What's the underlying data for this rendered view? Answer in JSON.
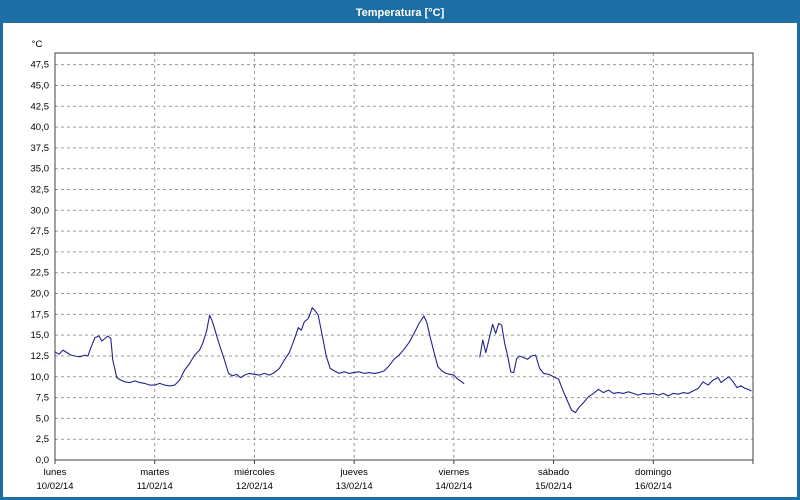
{
  "window": {
    "title": "Temperatura [°C]"
  },
  "chart_data": {
    "type": "line",
    "title": "Temperatura [°C]",
    "ylabel": "°C",
    "xlabel": "",
    "ylim": [
      0,
      48.9
    ],
    "xlim": [
      0,
      7
    ],
    "grid": "dashed",
    "legend": "none",
    "line_color": "#23238E",
    "grid_color": "#9a9a9a",
    "axis_color": "#404040",
    "yticks": [
      0,
      2.5,
      5,
      7.5,
      10,
      12.5,
      15,
      17.5,
      20,
      22.5,
      25,
      27.5,
      30,
      32.5,
      35,
      37.5,
      40,
      42.5,
      45,
      47.5
    ],
    "ytick_labels": [
      "0,0",
      "2,5",
      "5,0",
      "7,5",
      "10,0",
      "12,5",
      "15,0",
      "17,5",
      "20,0",
      "22,5",
      "25,0",
      "27,5",
      "30,0",
      "32,5",
      "35,0",
      "37,5",
      "40,0",
      "42,5",
      "45,0",
      "47,5"
    ],
    "x_categories": [
      {
        "label": "lunes",
        "date": "10/02/14"
      },
      {
        "label": "martes",
        "date": "11/02/14"
      },
      {
        "label": "miércoles",
        "date": "12/02/14"
      },
      {
        "label": "jueves",
        "date": "13/02/14"
      },
      {
        "label": "viernes",
        "date": "14/02/14"
      },
      {
        "label": "sábado",
        "date": "15/02/14"
      },
      {
        "label": "domingo",
        "date": "16/02/14"
      }
    ],
    "series_name": "Temperatura",
    "points": [
      [
        0.0,
        13.0
      ],
      [
        0.04,
        12.7
      ],
      [
        0.08,
        13.2
      ],
      [
        0.12,
        12.9
      ],
      [
        0.16,
        12.6
      ],
      [
        0.2,
        12.5
      ],
      [
        0.25,
        12.4
      ],
      [
        0.3,
        12.6
      ],
      [
        0.33,
        12.5
      ],
      [
        0.36,
        13.5
      ],
      [
        0.4,
        14.7
      ],
      [
        0.44,
        14.9
      ],
      [
        0.47,
        14.3
      ],
      [
        0.5,
        14.6
      ],
      [
        0.53,
        14.9
      ],
      [
        0.56,
        14.6
      ],
      [
        0.58,
        12.0
      ],
      [
        0.62,
        9.9
      ],
      [
        0.66,
        9.6
      ],
      [
        0.7,
        9.4
      ],
      [
        0.75,
        9.3
      ],
      [
        0.8,
        9.5
      ],
      [
        0.85,
        9.3
      ],
      [
        0.9,
        9.2
      ],
      [
        0.95,
        9.0
      ],
      [
        1.0,
        9.0
      ],
      [
        1.05,
        9.2
      ],
      [
        1.1,
        9.0
      ],
      [
        1.15,
        8.9
      ],
      [
        1.2,
        9.0
      ],
      [
        1.25,
        9.6
      ],
      [
        1.3,
        10.8
      ],
      [
        1.35,
        11.6
      ],
      [
        1.4,
        12.6
      ],
      [
        1.45,
        13.2
      ],
      [
        1.48,
        14.0
      ],
      [
        1.52,
        15.5
      ],
      [
        1.55,
        17.4
      ],
      [
        1.58,
        16.6
      ],
      [
        1.62,
        15.0
      ],
      [
        1.65,
        13.8
      ],
      [
        1.7,
        12.0
      ],
      [
        1.74,
        10.4
      ],
      [
        1.78,
        10.1
      ],
      [
        1.82,
        10.3
      ],
      [
        1.86,
        9.9
      ],
      [
        1.9,
        10.2
      ],
      [
        1.95,
        10.4
      ],
      [
        2.0,
        10.3
      ],
      [
        2.05,
        10.2
      ],
      [
        2.1,
        10.4
      ],
      [
        2.15,
        10.2
      ],
      [
        2.2,
        10.5
      ],
      [
        2.25,
        11.0
      ],
      [
        2.3,
        12.0
      ],
      [
        2.35,
        12.9
      ],
      [
        2.4,
        14.5
      ],
      [
        2.44,
        15.9
      ],
      [
        2.47,
        15.6
      ],
      [
        2.5,
        16.6
      ],
      [
        2.54,
        17.0
      ],
      [
        2.58,
        18.3
      ],
      [
        2.61,
        17.9
      ],
      [
        2.64,
        17.4
      ],
      [
        2.68,
        15.0
      ],
      [
        2.72,
        12.5
      ],
      [
        2.76,
        11.0
      ],
      [
        2.8,
        10.7
      ],
      [
        2.85,
        10.4
      ],
      [
        2.9,
        10.6
      ],
      [
        2.95,
        10.4
      ],
      [
        3.0,
        10.5
      ],
      [
        3.05,
        10.6
      ],
      [
        3.1,
        10.4
      ],
      [
        3.15,
        10.5
      ],
      [
        3.2,
        10.4
      ],
      [
        3.25,
        10.5
      ],
      [
        3.3,
        10.7
      ],
      [
        3.35,
        11.3
      ],
      [
        3.4,
        12.1
      ],
      [
        3.45,
        12.6
      ],
      [
        3.5,
        13.3
      ],
      [
        3.55,
        14.1
      ],
      [
        3.6,
        15.2
      ],
      [
        3.65,
        16.4
      ],
      [
        3.7,
        17.3
      ],
      [
        3.73,
        16.5
      ],
      [
        3.76,
        14.9
      ],
      [
        3.8,
        13.0
      ],
      [
        3.84,
        11.2
      ],
      [
        3.88,
        10.7
      ],
      [
        3.92,
        10.4
      ],
      [
        3.96,
        10.3
      ],
      [
        4.0,
        10.2
      ],
      [
        4.04,
        9.7
      ],
      [
        4.08,
        9.4
      ],
      [
        4.1,
        9.2
      ],
      null,
      [
        4.26,
        12.4
      ],
      [
        4.29,
        14.4
      ],
      [
        4.32,
        12.9
      ],
      [
        4.36,
        14.9
      ],
      [
        4.39,
        16.3
      ],
      [
        4.42,
        15.2
      ],
      [
        4.45,
        16.4
      ],
      [
        4.48,
        16.2
      ],
      [
        4.51,
        14.0
      ],
      [
        4.54,
        12.5
      ],
      [
        4.57,
        10.6
      ],
      [
        4.6,
        10.5
      ],
      [
        4.63,
        12.2
      ],
      [
        4.66,
        12.5
      ],
      [
        4.7,
        12.3
      ],
      [
        4.74,
        12.1
      ],
      [
        4.78,
        12.5
      ],
      [
        4.82,
        12.6
      ],
      [
        4.86,
        11.0
      ],
      [
        4.9,
        10.4
      ],
      [
        4.95,
        10.3
      ],
      [
        5.0,
        10.0
      ],
      [
        5.05,
        9.7
      ],
      [
        5.1,
        8.2
      ],
      [
        5.15,
        6.8
      ],
      [
        5.18,
        6.0
      ],
      [
        5.22,
        5.7
      ],
      [
        5.26,
        6.4
      ],
      [
        5.3,
        6.9
      ],
      [
        5.35,
        7.6
      ],
      [
        5.4,
        8.0
      ],
      [
        5.45,
        8.5
      ],
      [
        5.5,
        8.1
      ],
      [
        5.55,
        8.4
      ],
      [
        5.6,
        8.0
      ],
      [
        5.65,
        8.1
      ],
      [
        5.7,
        8.0
      ],
      [
        5.75,
        8.2
      ],
      [
        5.8,
        8.0
      ],
      [
        5.85,
        7.8
      ],
      [
        5.9,
        8.0
      ],
      [
        5.95,
        7.9
      ],
      [
        6.0,
        8.0
      ],
      [
        6.05,
        7.8
      ],
      [
        6.1,
        8.0
      ],
      [
        6.15,
        7.7
      ],
      [
        6.2,
        8.0
      ],
      [
        6.25,
        7.9
      ],
      [
        6.3,
        8.1
      ],
      [
        6.35,
        8.0
      ],
      [
        6.4,
        8.3
      ],
      [
        6.45,
        8.6
      ],
      [
        6.5,
        9.4
      ],
      [
        6.55,
        9.0
      ],
      [
        6.6,
        9.6
      ],
      [
        6.65,
        9.9
      ],
      [
        6.68,
        9.3
      ],
      [
        6.72,
        9.7
      ],
      [
        6.76,
        10.0
      ],
      [
        6.8,
        9.4
      ],
      [
        6.84,
        8.7
      ],
      [
        6.88,
        8.9
      ],
      [
        6.92,
        8.6
      ],
      [
        6.95,
        8.5
      ],
      [
        6.98,
        8.3
      ]
    ]
  }
}
